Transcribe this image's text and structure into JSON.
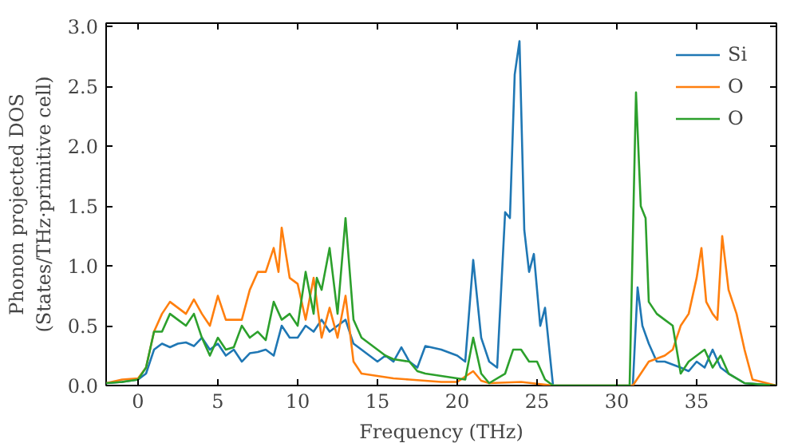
{
  "chart_data": {
    "type": "line",
    "xlabel": "Frequency (THz)",
    "ylabel": "Phonon projected DOS\n(States/THz·primitive cell)",
    "xlim": [
      -2,
      40
    ],
    "ylim": [
      0,
      3.03
    ],
    "xticks": [
      0,
      5,
      10,
      15,
      20,
      25,
      30,
      35
    ],
    "yticks": [
      {
        "value": 0,
        "label": "0.0"
      },
      {
        "value": 0.5,
        "label": "0.5"
      },
      {
        "value": 1,
        "label": "1.0"
      },
      {
        "value": 1.5,
        "label": "1.5"
      },
      {
        "value": 2,
        "label": "2.0"
      },
      {
        "value": 2.5,
        "label": "2.5"
      },
      {
        "value": 3,
        "label": "3.0"
      }
    ],
    "legend": "top right",
    "grid": false,
    "series": [
      {
        "name": "Si",
        "color": "#1f77b4",
        "x": [
          -2,
          -1,
          0,
          0.5,
          1,
          1.5,
          2,
          2.5,
          3,
          3.5,
          4,
          4.5,
          5,
          5.5,
          6,
          6.5,
          7,
          7.5,
          8,
          8.5,
          9,
          9.5,
          10,
          10.5,
          11,
          11.5,
          12,
          12.5,
          13,
          13.5,
          14,
          14.5,
          15,
          15.5,
          16,
          16.5,
          17,
          17.5,
          18,
          19,
          20,
          20.5,
          21,
          21.5,
          22,
          22.5,
          23,
          23.3,
          23.6,
          23.9,
          24.2,
          24.5,
          24.8,
          25.2,
          25.5,
          26,
          31,
          31.3,
          31.6,
          32,
          32.5,
          33,
          34,
          34.5,
          35,
          35.5,
          36,
          36.5,
          37,
          38,
          40
        ],
        "values": [
          0.02,
          0.03,
          0.05,
          0.1,
          0.3,
          0.35,
          0.32,
          0.35,
          0.36,
          0.33,
          0.4,
          0.3,
          0.35,
          0.25,
          0.3,
          0.2,
          0.27,
          0.28,
          0.3,
          0.25,
          0.5,
          0.4,
          0.4,
          0.5,
          0.45,
          0.55,
          0.45,
          0.5,
          0.55,
          0.35,
          0.3,
          0.25,
          0.2,
          0.25,
          0.2,
          0.32,
          0.2,
          0.15,
          0.33,
          0.3,
          0.25,
          0.2,
          1.05,
          0.4,
          0.2,
          0.15,
          1.45,
          1.4,
          2.6,
          2.88,
          1.3,
          0.95,
          1.1,
          0.5,
          0.65,
          0,
          0,
          0.82,
          0.5,
          0.35,
          0.2,
          0.2,
          0.15,
          0.12,
          0.2,
          0.15,
          0.3,
          0.15,
          0.1,
          0.02,
          0
        ]
      },
      {
        "name": "O",
        "color": "#ff7f0e",
        "x": [
          -2,
          -1,
          0,
          0.5,
          1,
          1.5,
          2,
          2.5,
          3,
          3.5,
          4,
          4.5,
          5,
          5.5,
          6,
          6.5,
          7,
          7.5,
          8,
          8.5,
          8.8,
          9,
          9.5,
          10,
          10.5,
          11,
          11.5,
          12,
          12.5,
          13,
          13.5,
          14,
          15,
          16,
          17,
          18,
          19,
          20,
          21,
          21.5,
          22,
          24,
          26,
          31,
          31.5,
          32,
          33,
          33.5,
          34,
          34.5,
          35,
          35.3,
          35.6,
          36,
          36.3,
          36.6,
          37,
          37.5,
          38,
          38.5,
          40
        ],
        "values": [
          0.02,
          0.05,
          0.06,
          0.15,
          0.45,
          0.6,
          0.7,
          0.65,
          0.6,
          0.72,
          0.6,
          0.5,
          0.75,
          0.55,
          0.55,
          0.55,
          0.8,
          0.95,
          0.95,
          1.15,
          0.95,
          1.32,
          0.9,
          0.85,
          0.55,
          0.9,
          0.4,
          0.65,
          0.4,
          0.75,
          0.2,
          0.1,
          0.08,
          0.06,
          0.05,
          0.04,
          0.03,
          0.03,
          0.12,
          0.04,
          0.02,
          0.03,
          0,
          0,
          0.1,
          0.2,
          0.25,
          0.3,
          0.5,
          0.6,
          0.9,
          1.15,
          0.7,
          0.6,
          0.55,
          1.25,
          0.8,
          0.6,
          0.3,
          0.05,
          0
        ]
      },
      {
        "name": "O",
        "color": "#2ca02c",
        "x": [
          -2,
          -1,
          0,
          0.5,
          1,
          1.5,
          2,
          2.5,
          3,
          3.5,
          4,
          4.5,
          5,
          5.5,
          6,
          6.5,
          7,
          7.5,
          8,
          8.5,
          9,
          9.5,
          10,
          10.5,
          11,
          11.2,
          11.5,
          12,
          12.5,
          13,
          13.5,
          14,
          14.5,
          15,
          15.5,
          16,
          17,
          17.5,
          18,
          19,
          20,
          20.5,
          21,
          21.5,
          22,
          23,
          23.5,
          24,
          24.5,
          25,
          25.5,
          26,
          30.8,
          31.2,
          31.5,
          31.8,
          32,
          32.5,
          33,
          33.5,
          34,
          34.5,
          35,
          35.5,
          36,
          36.5,
          37,
          38,
          40
        ],
        "values": [
          0.02,
          0.03,
          0.05,
          0.15,
          0.45,
          0.45,
          0.6,
          0.55,
          0.5,
          0.6,
          0.4,
          0.25,
          0.4,
          0.3,
          0.32,
          0.5,
          0.4,
          0.45,
          0.38,
          0.7,
          0.55,
          0.6,
          0.5,
          0.95,
          0.6,
          0.9,
          0.8,
          1.15,
          0.6,
          1.4,
          0.55,
          0.4,
          0.35,
          0.3,
          0.25,
          0.22,
          0.2,
          0.12,
          0.1,
          0.08,
          0.06,
          0.05,
          0.4,
          0.1,
          0.02,
          0.1,
          0.3,
          0.3,
          0.2,
          0.2,
          0.05,
          0,
          0,
          2.45,
          1.5,
          1.4,
          0.7,
          0.6,
          0.55,
          0.5,
          0.1,
          0.2,
          0.25,
          0.3,
          0.15,
          0.25,
          0.1,
          0.02,
          0
        ]
      }
    ]
  }
}
